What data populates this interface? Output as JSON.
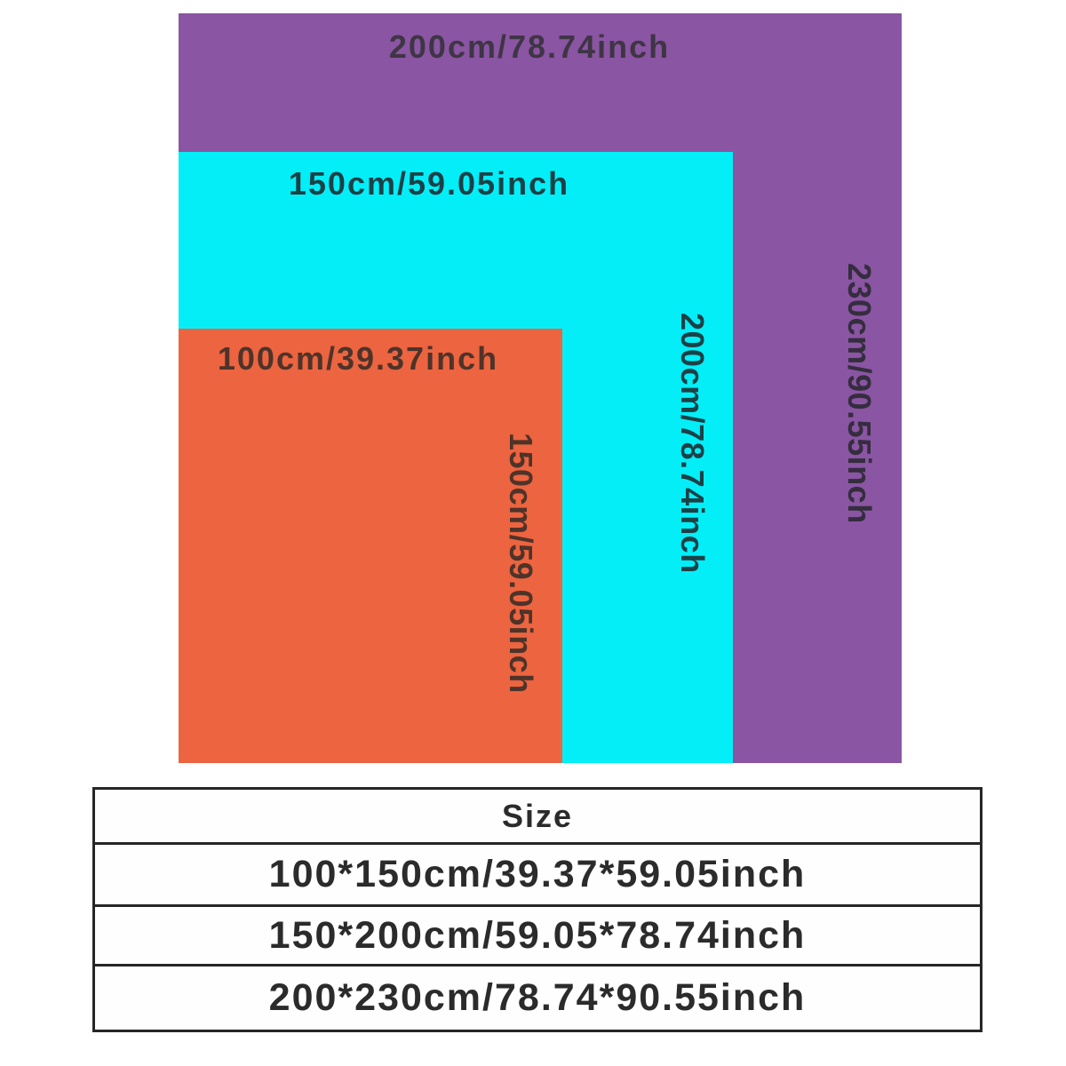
{
  "diagram": {
    "rects": [
      {
        "name": "200x230cm blanket size",
        "fill": "#8a55a2",
        "width_label": "200cm/78.74inch",
        "height_label": "230cm/90.55inch"
      },
      {
        "name": "150x200cm blanket size",
        "fill": "#04eef8",
        "width_label": "150cm/59.05inch",
        "height_label": "200cm/78.74inch"
      },
      {
        "name": "100x150cm blanket size",
        "fill": "#ec6440",
        "width_label": "100cm/39.37inch",
        "height_label": "150cm/59.05inch"
      }
    ]
  },
  "table": {
    "header": "Size",
    "rows": [
      "100*150cm/39.37*59.05inch",
      "150*200cm/59.05*78.74inch",
      "200*230cm/78.74*90.55inch"
    ]
  },
  "colors": {
    "purple_rect": "#8a55a2",
    "cyan_rect": "#04eef8",
    "orange_rect": "#ec6440",
    "table_border": "#262626",
    "label_on_purple": "#3e3545",
    "label_on_cyan": "#1b4146",
    "label_on_orange": "#4e3329",
    "background": "#ffffff"
  }
}
